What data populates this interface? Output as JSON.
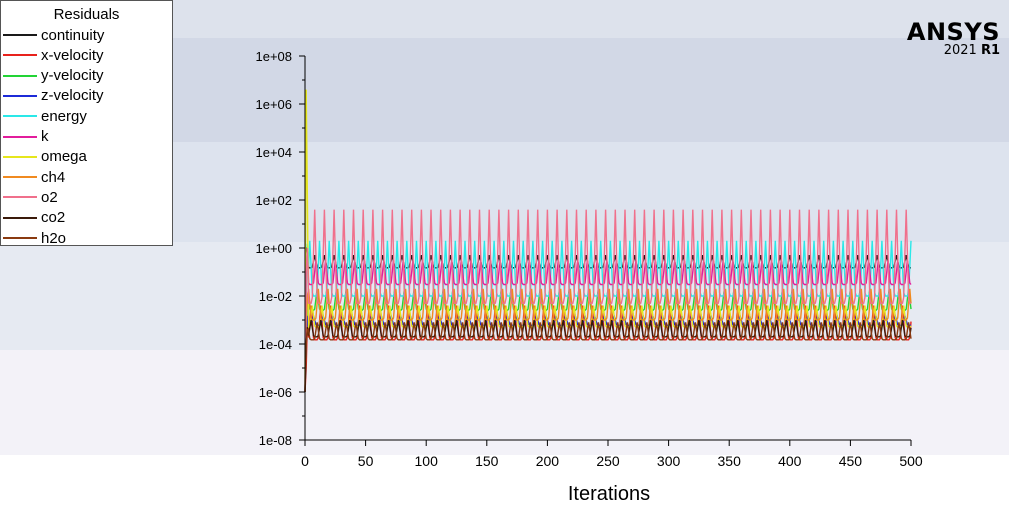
{
  "legend": {
    "title": "Residuals",
    "items": [
      {
        "label": "continuity",
        "color": "#1a1a1a"
      },
      {
        "label": "x-velocity",
        "color": "#e8221c"
      },
      {
        "label": "y-velocity",
        "color": "#22d435"
      },
      {
        "label": "z-velocity",
        "color": "#1c2ad8"
      },
      {
        "label": "energy",
        "color": "#2ae8e8"
      },
      {
        "label": "k",
        "color": "#e21c9c"
      },
      {
        "label": "omega",
        "color": "#e6e61c"
      },
      {
        "label": "ch4",
        "color": "#f08a20"
      },
      {
        "label": "o2",
        "color": "#f0708c"
      },
      {
        "label": "co2",
        "color": "#3a1a0a"
      },
      {
        "label": "h2o",
        "color": "#8a3a10"
      }
    ]
  },
  "logo": {
    "name": "ANSYS",
    "year": "2021",
    "release": "R1"
  },
  "chart_data": {
    "type": "line",
    "title": "",
    "xlabel": "Iterations",
    "ylabel": "",
    "xlim": [
      0,
      500
    ],
    "ylim": [
      1e-08,
      100000000.0
    ],
    "yscale": "log",
    "grid": false,
    "legend_position": "top-left",
    "x_ticks": [
      "0",
      "50",
      "100",
      "150",
      "200",
      "250",
      "300",
      "350",
      "400",
      "450",
      "500"
    ],
    "y_ticks": [
      "1e+08",
      "1e+06",
      "1e+04",
      "1e+02",
      "1e+00",
      "1e-02",
      "1e-04",
      "1e-06",
      "1e-08"
    ],
    "oscillation_period": 8,
    "series": [
      {
        "name": "continuity",
        "initial": [
          1,
          1,
          0.5
        ],
        "low": 0.15,
        "high": 0.5
      },
      {
        "name": "x-velocity",
        "initial": [
          1e-06,
          1e-05,
          0.001
        ],
        "low": 0.00015,
        "high": 0.004
      },
      {
        "name": "y-velocity",
        "initial": [
          1e-06,
          0.0001,
          0.01
        ],
        "low": 0.0025,
        "high": 0.02
      },
      {
        "name": "z-velocity",
        "initial": [
          1e-06,
          0.0001,
          0.0015
        ],
        "low": 0.0006,
        "high": 0.0015
      },
      {
        "name": "energy",
        "initial": [
          1e-06,
          0.01,
          1.5
        ],
        "low": 0.01,
        "high": 2
      },
      {
        "name": "k",
        "initial": [
          1e-06,
          0.1,
          1
        ],
        "low": 0.03,
        "high": 0.3
      },
      {
        "name": "omega",
        "initial": [
          1e-06,
          4000000,
          100
        ],
        "low": 0.0005,
        "high": 0.004
      },
      {
        "name": "ch4",
        "initial": [
          1e-06,
          0.001,
          0.01
        ],
        "low": 0.001,
        "high": 0.02
      },
      {
        "name": "o2",
        "initial": [
          1e-06,
          0.1,
          1
        ],
        "low": 0.005,
        "high": 40
      },
      {
        "name": "co2",
        "initial": [
          1e-06,
          0.0001,
          0.0005
        ],
        "low": 0.0002,
        "high": 0.001
      },
      {
        "name": "h2o",
        "initial": [
          1e-06,
          0.0001,
          0.0004
        ],
        "low": 0.00015,
        "high": 0.0008
      }
    ]
  }
}
